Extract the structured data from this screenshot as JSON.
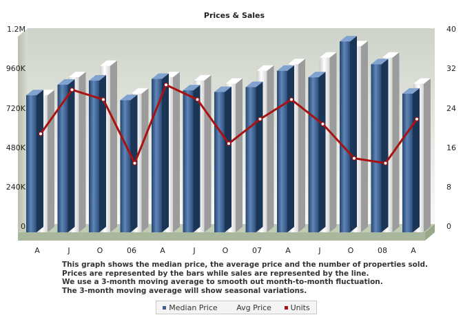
{
  "chart_data": {
    "type": "bar",
    "title": "Prices & Sales",
    "categories": [
      "A",
      "J",
      "O",
      "06",
      "A",
      "J",
      "O",
      "07",
      "A",
      "J",
      "O",
      "08",
      "A"
    ],
    "series": [
      {
        "name": "Median Price",
        "type": "bar",
        "axis": "left",
        "color": "#3a5f8f",
        "values": [
          840000,
          905000,
          930000,
          810000,
          940000,
          870000,
          860000,
          890000,
          990000,
          950000,
          1170000,
          1030000,
          850000
        ]
      },
      {
        "name": "Avg Price",
        "type": "bar",
        "axis": "left",
        "color": "#f2f2f2",
        "values": [
          840000,
          950000,
          1020000,
          850000,
          950000,
          930000,
          910000,
          990000,
          1030000,
          1070000,
          1140000,
          1070000,
          910000
        ]
      },
      {
        "name": "Units",
        "type": "line",
        "axis": "right",
        "color": "#aa1111",
        "values": [
          19,
          28,
          26,
          13,
          29,
          26,
          17,
          22,
          26,
          21,
          14,
          13,
          22
        ]
      }
    ],
    "y_left": {
      "ylim": [
        0,
        1200000
      ],
      "ticks": [
        0,
        240000,
        480000,
        720000,
        960000,
        1200000
      ],
      "tick_labels": [
        "0",
        "240K",
        "480K",
        "720K",
        "960K",
        "1.2M"
      ]
    },
    "y_right": {
      "ylim": [
        0,
        40
      ],
      "ticks": [
        0,
        8,
        16,
        24,
        32,
        40
      ],
      "tick_labels": [
        "0",
        "8",
        "16",
        "24",
        "32",
        "40"
      ]
    },
    "grid": false,
    "legend_position": "bottom"
  },
  "description": [
    "This graph shows the median price, the average price and the number of properties sold.",
    "Prices are represented by the bars while sales are represented by the line.",
    "We use a 3-month moving average to smooth out month-to-month fluctuation.",
    "The 3-month moving average will show seasonal variations."
  ],
  "legend": {
    "median_label": "Median Price",
    "avg_label": "Avg Price",
    "units_label": "Units"
  }
}
